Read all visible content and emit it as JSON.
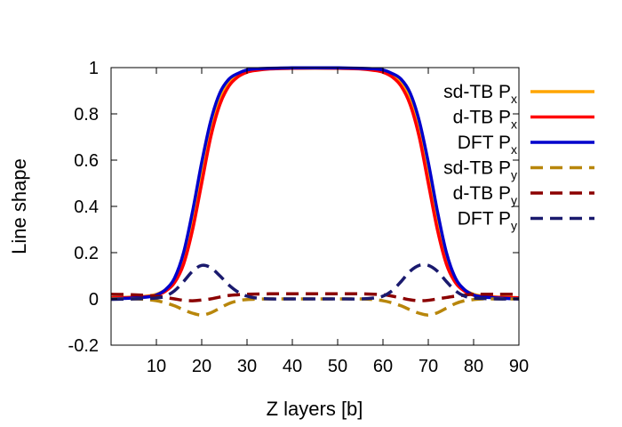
{
  "chart_data": {
    "type": "line",
    "title": "",
    "xlabel": "Z layers [b]",
    "ylabel": "Line shape",
    "xlim": [
      0,
      90
    ],
    "ylim": [
      -0.2,
      1
    ],
    "xticks": [
      10,
      20,
      30,
      40,
      50,
      60,
      70,
      80,
      90
    ],
    "xtick_labels": [
      "10",
      "20",
      "30",
      "40",
      "50",
      "60",
      "70",
      "80",
      "90"
    ],
    "yticks": [
      -0.2,
      0,
      0.2,
      0.4,
      0.6,
      0.8,
      1
    ],
    "ytick_labels": [
      "-0.2",
      "0",
      "0.2",
      "0.4",
      "0.6",
      "0.8",
      "1"
    ],
    "grid": false,
    "legend_position": "right",
    "series": [
      {
        "name": "sd-TB Px",
        "label_main": "sd-TB P",
        "label_sub": "x",
        "color": "#FFA500",
        "dash": "solid",
        "x": [
          0,
          4,
          8,
          10,
          12,
          14,
          16,
          18,
          20,
          22,
          24,
          26,
          28,
          30,
          32,
          35,
          40,
          45,
          50,
          55,
          58,
          60,
          62,
          64,
          66,
          68,
          70,
          72,
          74,
          76,
          78,
          80,
          82,
          86,
          90
        ],
        "y": [
          0.005,
          0.007,
          0.012,
          0.02,
          0.04,
          0.085,
          0.18,
          0.34,
          0.55,
          0.74,
          0.87,
          0.94,
          0.97,
          0.985,
          0.99,
          0.995,
          0.997,
          0.998,
          0.997,
          0.995,
          0.99,
          0.985,
          0.97,
          0.94,
          0.87,
          0.74,
          0.55,
          0.34,
          0.18,
          0.085,
          0.04,
          0.02,
          0.012,
          0.007,
          0.005
        ]
      },
      {
        "name": "d-TB Px",
        "label_main": "d-TB P",
        "label_sub": "x",
        "color": "#FF0000",
        "dash": "solid",
        "x": [
          0,
          4,
          8,
          10,
          12,
          14,
          16,
          18,
          20,
          22,
          24,
          26,
          28,
          30,
          32,
          35,
          40,
          45,
          50,
          55,
          58,
          60,
          62,
          64,
          66,
          68,
          70,
          72,
          74,
          76,
          78,
          80,
          82,
          86,
          90
        ],
        "y": [
          0.005,
          0.006,
          0.01,
          0.016,
          0.033,
          0.07,
          0.15,
          0.3,
          0.5,
          0.7,
          0.84,
          0.92,
          0.96,
          0.98,
          0.988,
          0.994,
          0.997,
          0.998,
          0.997,
          0.994,
          0.988,
          0.98,
          0.96,
          0.92,
          0.84,
          0.7,
          0.5,
          0.3,
          0.15,
          0.07,
          0.033,
          0.016,
          0.01,
          0.006,
          0.005
        ]
      },
      {
        "name": "DFT Px",
        "label_main": "DFT P",
        "label_sub": "x",
        "color": "#0000CC",
        "dash": "solid",
        "x": [
          0,
          4,
          8,
          10,
          12,
          14,
          16,
          18,
          20,
          22,
          24,
          26,
          28,
          30,
          32,
          35,
          40,
          45,
          50,
          55,
          58,
          60,
          62,
          64,
          66,
          68,
          70,
          72,
          74,
          76,
          78,
          80,
          82,
          86,
          90
        ],
        "y": [
          0.0,
          0.003,
          0.008,
          0.017,
          0.04,
          0.09,
          0.2,
          0.38,
          0.59,
          0.77,
          0.89,
          0.95,
          0.975,
          0.99,
          0.995,
          0.997,
          0.999,
          0.999,
          0.999,
          0.997,
          0.995,
          0.99,
          0.975,
          0.95,
          0.89,
          0.77,
          0.59,
          0.38,
          0.2,
          0.09,
          0.04,
          0.017,
          0.008,
          0.003,
          0.0
        ]
      },
      {
        "name": "sd-TB Py",
        "label_main": "sd-TB P",
        "label_sub": "y",
        "color": "#B8860B",
        "dash": "dashed",
        "x": [
          0,
          5,
          8,
          10,
          12,
          14,
          16,
          18,
          20,
          22,
          24,
          26,
          28,
          30,
          35,
          40,
          45,
          50,
          55,
          58,
          60,
          62,
          64,
          66,
          68,
          70,
          72,
          74,
          76,
          78,
          80,
          82,
          85,
          90
        ],
        "y": [
          0.0,
          0.0,
          -0.003,
          -0.008,
          -0.017,
          -0.03,
          -0.047,
          -0.062,
          -0.07,
          -0.06,
          -0.04,
          -0.02,
          -0.008,
          -0.003,
          0.0,
          0.0,
          0.0,
          0.0,
          0.0,
          -0.003,
          -0.008,
          -0.017,
          -0.03,
          -0.047,
          -0.062,
          -0.07,
          -0.06,
          -0.04,
          -0.02,
          -0.008,
          -0.003,
          0.0,
          0.0,
          0.0
        ]
      },
      {
        "name": "d-TB Py",
        "label_main": "d-TB P",
        "label_sub": "y",
        "color": "#8B0000",
        "dash": "dashed",
        "x": [
          0,
          5,
          10,
          12,
          14,
          16,
          18,
          20,
          22,
          24,
          26,
          28,
          30,
          35,
          40,
          45,
          50,
          55,
          60,
          62,
          64,
          66,
          68,
          70,
          72,
          74,
          76,
          78,
          80,
          85,
          90
        ],
        "y": [
          0.02,
          0.018,
          0.012,
          0.006,
          0.0,
          -0.006,
          -0.008,
          -0.005,
          0.0,
          0.008,
          0.015,
          0.018,
          0.02,
          0.022,
          0.022,
          0.022,
          0.022,
          0.022,
          0.018,
          0.012,
          0.004,
          -0.004,
          -0.008,
          -0.006,
          0.0,
          0.006,
          0.012,
          0.016,
          0.02,
          0.02,
          0.02
        ]
      },
      {
        "name": "DFT Py",
        "label_main": "DFT P",
        "label_sub": "y",
        "color": "#1A1A6E",
        "dash": "dashed",
        "x": [
          0,
          5,
          10,
          12,
          14,
          16,
          18,
          20,
          22,
          24,
          26,
          28,
          30,
          32,
          35,
          40,
          45,
          50,
          55,
          58,
          60,
          62,
          64,
          66,
          68,
          70,
          72,
          74,
          76,
          78,
          80,
          85,
          90
        ],
        "y": [
          -0.002,
          0.0,
          0.004,
          0.012,
          0.035,
          0.075,
          0.12,
          0.145,
          0.135,
          0.1,
          0.06,
          0.03,
          0.012,
          0.004,
          0.0,
          0.0,
          0.0,
          0.0,
          0.0,
          0.004,
          0.012,
          0.035,
          0.075,
          0.12,
          0.145,
          0.145,
          0.12,
          0.075,
          0.035,
          0.012,
          0.004,
          0.0,
          0.0
        ]
      }
    ]
  }
}
